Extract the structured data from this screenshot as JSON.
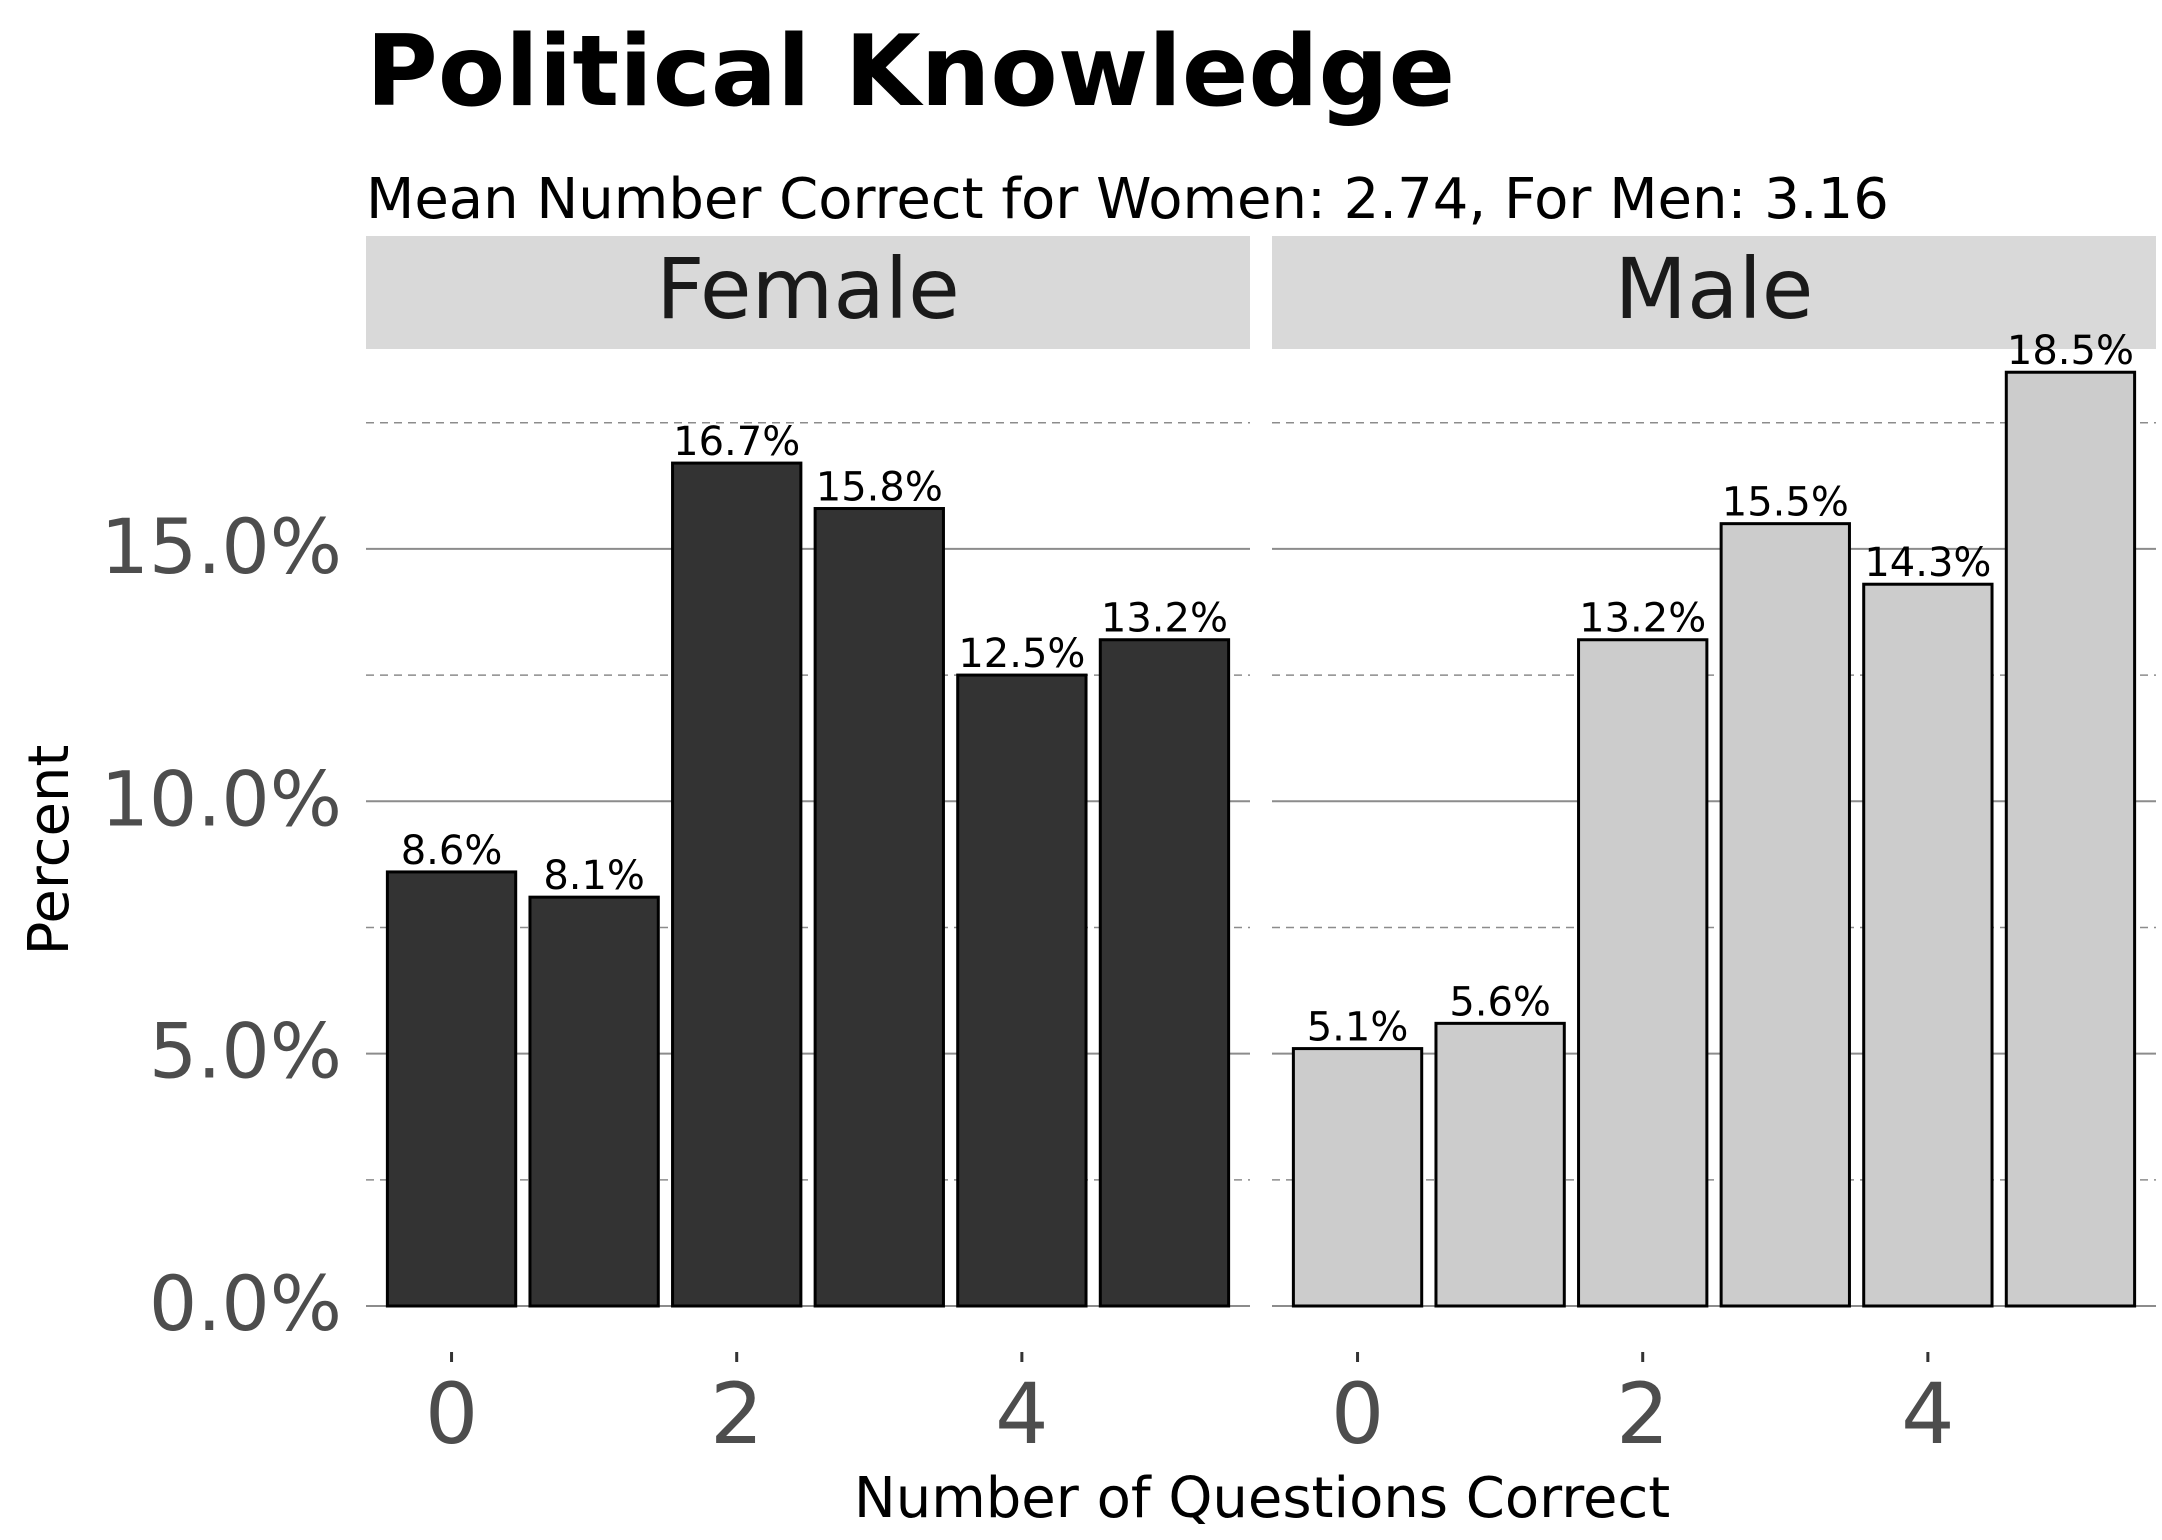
{
  "chart_data": {
    "type": "bar",
    "title": "Political Knowledge",
    "subtitle": "Mean Number Correct for Women: 2.74, For Men: 3.16",
    "xlabel": "Number of Questions Correct",
    "ylabel": "Percent",
    "x": [
      0,
      1,
      2,
      3,
      4,
      5
    ],
    "x_tick_labels": [
      "0",
      "2",
      "4"
    ],
    "x_tick_values": [
      0,
      2,
      4
    ],
    "y_tick_labels": [
      "0.0%",
      "5.0%",
      "10.0%",
      "15.0%"
    ],
    "y_tick_values": [
      0,
      5,
      10,
      15
    ],
    "ylim": [
      0,
      19
    ],
    "grid": true,
    "legend": "none",
    "panels": [
      {
        "name": "Female",
        "fill": "#333333",
        "values": [
          8.6,
          8.1,
          16.7,
          15.8,
          12.5,
          13.2
        ],
        "labels": [
          "8.6%",
          "8.1%",
          "16.7%",
          "15.8%",
          "12.5%",
          "13.2%"
        ]
      },
      {
        "name": "Male",
        "fill": "#cccccc",
        "values": [
          5.1,
          5.6,
          13.2,
          15.5,
          14.3,
          18.5
        ],
        "labels": [
          "5.1%",
          "5.6%",
          "13.2%",
          "15.5%",
          "14.3%",
          "18.5%"
        ]
      }
    ],
    "colors": {
      "strip": "#d9d9d9",
      "grid": "#8c8c8c",
      "tick_text": "#4d4d4d",
      "text": "#000000",
      "bar_outline": "#000000"
    }
  }
}
